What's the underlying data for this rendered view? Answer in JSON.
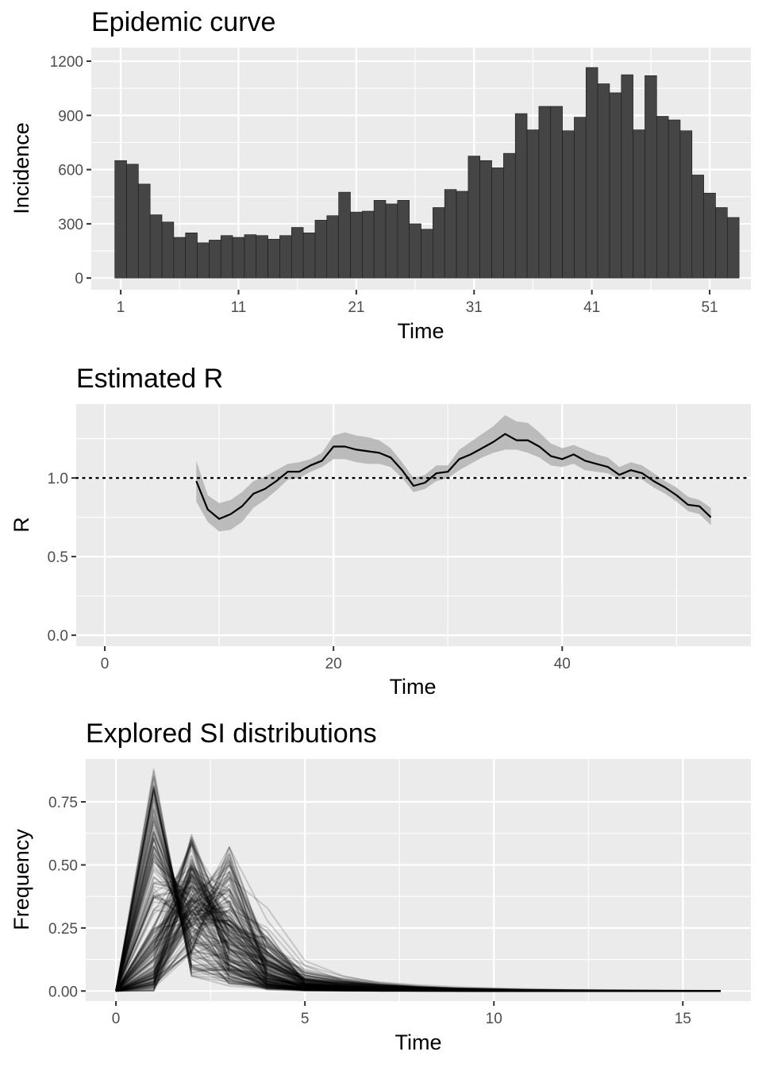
{
  "chart_data": [
    {
      "type": "bar",
      "title": "Epidemic curve",
      "xlabel": "Time",
      "ylabel": "Incidence",
      "xlim": [
        -1.5,
        54.5
      ],
      "ylim": [
        -65,
        1275
      ],
      "x_ticks": [
        1,
        11,
        21,
        31,
        41,
        51
      ],
      "y_ticks": [
        0,
        300,
        600,
        900,
        1200
      ],
      "x": [
        1,
        2,
        3,
        4,
        5,
        6,
        7,
        8,
        9,
        10,
        11,
        12,
        13,
        14,
        15,
        16,
        17,
        18,
        19,
        20,
        21,
        22,
        23,
        24,
        25,
        26,
        27,
        28,
        29,
        30,
        31,
        32,
        33,
        34,
        35,
        36,
        37,
        38,
        39,
        40,
        41,
        42,
        43,
        44,
        45,
        46,
        47,
        48,
        49,
        50,
        51,
        52,
        53
      ],
      "values": [
        650,
        630,
        520,
        350,
        310,
        225,
        250,
        195,
        210,
        235,
        225,
        240,
        235,
        215,
        235,
        280,
        250,
        320,
        345,
        475,
        365,
        370,
        430,
        410,
        430,
        300,
        270,
        390,
        490,
        480,
        675,
        650,
        610,
        690,
        910,
        820,
        950,
        950,
        815,
        890,
        1165,
        1075,
        1025,
        1125,
        820,
        1120,
        895,
        875,
        815,
        570,
        470,
        390,
        335
      ],
      "bar_color": "#454545"
    },
    {
      "type": "line",
      "title": "Estimated R",
      "xlabel": "Time",
      "ylabel": "R",
      "xlim": [
        -2.5,
        56.5
      ],
      "ylim": [
        -0.07,
        1.47
      ],
      "x_ticks": [
        0,
        20,
        40
      ],
      "y_ticks": [
        0.0,
        0.5,
        1.0
      ],
      "y_tick_labels": [
        "0.0",
        "0.5",
        "1.0"
      ],
      "reference_line": 1.0,
      "series": [
        {
          "x": [
            8,
            9,
            10,
            11,
            12,
            13,
            14,
            15,
            16,
            17,
            18,
            19,
            20,
            21,
            22,
            23,
            24,
            25,
            26,
            27,
            28,
            29,
            30,
            31,
            32,
            33,
            34,
            35,
            36,
            37,
            38,
            39,
            40,
            41,
            42,
            43,
            44,
            45,
            46,
            47,
            48,
            49,
            50,
            51,
            52,
            53
          ],
          "mean": [
            0.98,
            0.8,
            0.74,
            0.77,
            0.82,
            0.9,
            0.93,
            0.98,
            1.04,
            1.04,
            1.08,
            1.11,
            1.2,
            1.2,
            1.18,
            1.17,
            1.16,
            1.13,
            1.05,
            0.95,
            0.97,
            1.03,
            1.04,
            1.12,
            1.15,
            1.19,
            1.23,
            1.28,
            1.24,
            1.24,
            1.2,
            1.14,
            1.12,
            1.15,
            1.11,
            1.09,
            1.07,
            1.02,
            1.05,
            1.03,
            0.98,
            0.94,
            0.89,
            0.83,
            0.82,
            0.75
          ],
          "lower": [
            0.85,
            0.72,
            0.66,
            0.67,
            0.72,
            0.81,
            0.86,
            0.92,
            0.99,
            1.0,
            1.04,
            1.07,
            1.12,
            1.12,
            1.1,
            1.09,
            1.09,
            1.07,
            1.0,
            0.91,
            0.93,
            0.98,
            1.0,
            1.05,
            1.09,
            1.13,
            1.16,
            1.18,
            1.18,
            1.16,
            1.13,
            1.08,
            1.07,
            1.09,
            1.05,
            1.04,
            1.03,
            0.99,
            1.01,
            0.99,
            0.94,
            0.9,
            0.85,
            0.79,
            0.77,
            0.7
          ],
          "upper": [
            1.11,
            0.89,
            0.84,
            0.86,
            0.91,
            0.98,
            1.01,
            1.05,
            1.09,
            1.1,
            1.12,
            1.16,
            1.27,
            1.29,
            1.27,
            1.26,
            1.24,
            1.19,
            1.1,
            1.0,
            1.02,
            1.08,
            1.08,
            1.18,
            1.23,
            1.28,
            1.33,
            1.4,
            1.36,
            1.35,
            1.29,
            1.22,
            1.19,
            1.21,
            1.18,
            1.15,
            1.13,
            1.07,
            1.1,
            1.08,
            1.03,
            0.98,
            0.94,
            0.88,
            0.86,
            0.81
          ]
        }
      ]
    },
    {
      "type": "line",
      "title": "Explored SI distributions",
      "xlabel": "Time",
      "ylabel": "Frequency",
      "xlim": [
        -0.8,
        16.8
      ],
      "ylim": [
        -0.04,
        0.92
      ],
      "x_ticks": [
        0,
        5,
        10,
        15
      ],
      "y_ticks": [
        0.0,
        0.25,
        0.5,
        0.75
      ],
      "y_tick_labels": [
        "0.00",
        "0.25",
        "0.50",
        "0.75"
      ],
      "x": [
        0,
        1,
        2,
        3,
        4,
        5,
        6,
        7,
        8,
        9,
        10,
        11,
        12,
        13,
        14,
        15,
        16
      ],
      "series_count": 200,
      "line_alpha": 0.16,
      "series": [
        {
          "values": [
            0,
            0.88,
            0.06,
            0.02,
            0.01,
            0.01,
            0,
            0,
            0,
            0,
            0,
            0,
            0,
            0,
            0,
            0,
            0
          ]
        },
        {
          "values": [
            0,
            0.02,
            0.62,
            0.22,
            0.08,
            0.04,
            0.01,
            0,
            0,
            0,
            0,
            0,
            0,
            0,
            0,
            0,
            0
          ]
        },
        {
          "values": [
            0,
            0.01,
            0.3,
            0.57,
            0.28,
            0.1,
            0.04,
            0.02,
            0.01,
            0,
            0,
            0,
            0,
            0,
            0,
            0,
            0
          ]
        },
        {
          "values": [
            0,
            0.45,
            0.35,
            0.12,
            0.05,
            0.02,
            0.01,
            0,
            0,
            0,
            0,
            0,
            0,
            0,
            0,
            0,
            0
          ]
        },
        {
          "values": [
            0,
            0.2,
            0.4,
            0.22,
            0.1,
            0.05,
            0.02,
            0.01,
            0,
            0,
            0,
            0,
            0,
            0,
            0,
            0,
            0
          ]
        },
        {
          "values": [
            0,
            0.05,
            0.15,
            0.45,
            0.33,
            0.12,
            0.06,
            0.03,
            0.02,
            0.01,
            0.01,
            0,
            0,
            0,
            0,
            0,
            0
          ]
        }
      ]
    }
  ]
}
